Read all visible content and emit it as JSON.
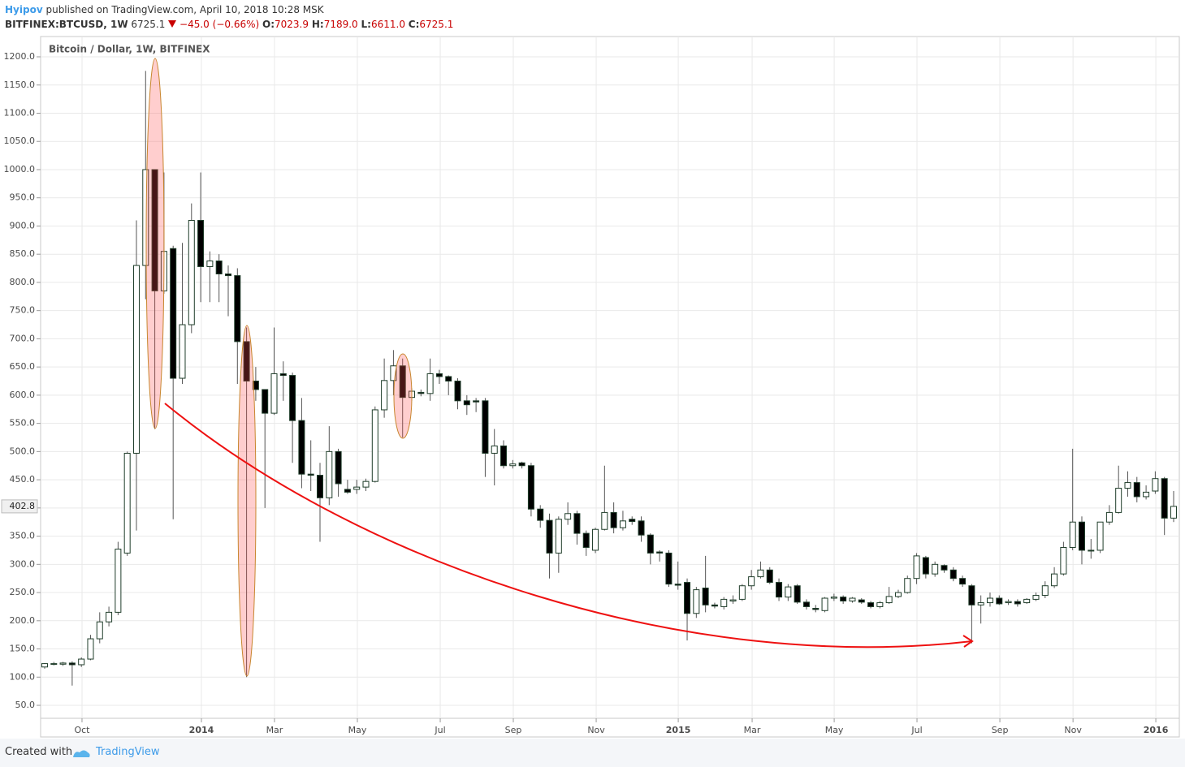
{
  "header": {
    "author": "Hyipov",
    "published": "published on TradingView.com, April 10, 2018 10:28 MSK",
    "symbol": "BITFINEX:BTCUSD, 1W",
    "last": "6725.1",
    "change": "−45.0 (−0.66%)",
    "ohlc": [
      {
        "label": "O:",
        "value": "7023.9"
      },
      {
        "label": "H:",
        "value": "7189.0"
      },
      {
        "label": "L:",
        "value": "6611.0"
      },
      {
        "label": "C:",
        "value": "6725.1"
      }
    ]
  },
  "footer": {
    "text": "Created with",
    "brand": "TradingView"
  },
  "chart_data": {
    "type": "candlestick",
    "title": "Bitcoin / Dollar, 1W, BITFINEX",
    "up_color": "#ffffff",
    "down_color": "#000000",
    "border_color": "#1f3d2a",
    "wick_color": "#555555",
    "grid": true,
    "ylim": [
      27,
      1236
    ],
    "yticks": [
      {
        "value": 50,
        "label": "50.0"
      },
      {
        "value": 100,
        "label": "100.0"
      },
      {
        "value": 150,
        "label": "150.0"
      },
      {
        "value": 200,
        "label": "200.0"
      },
      {
        "value": 250,
        "label": "250.0"
      },
      {
        "value": 300,
        "label": "300.0"
      },
      {
        "value": 350,
        "label": "350.0"
      },
      {
        "value": 400,
        "label": "400.0"
      },
      {
        "value": 450,
        "label": "450.0"
      },
      {
        "value": 500,
        "label": "500.0"
      },
      {
        "value": 550,
        "label": "550.0"
      },
      {
        "value": 600,
        "label": "600.0"
      },
      {
        "value": 650,
        "label": "650.0"
      },
      {
        "value": 700,
        "label": "700.0"
      },
      {
        "value": 750,
        "label": "750.0"
      },
      {
        "value": 800,
        "label": "800.0"
      },
      {
        "value": 850,
        "label": "850.0"
      },
      {
        "value": 900,
        "label": "900.0"
      },
      {
        "value": 950,
        "label": "950.0"
      },
      {
        "value": 1000,
        "label": "1000.0"
      },
      {
        "value": 1050,
        "label": "1050.0"
      },
      {
        "value": 1100,
        "label": "1100.0"
      },
      {
        "value": 1150,
        "label": "1150.0"
      },
      {
        "value": 1200,
        "label": "1200.0"
      }
    ],
    "xlim": [
      -0.44,
      123.62
    ],
    "xticks": [
      {
        "value": 4.07,
        "label": "Oct"
      },
      {
        "value": 17.08,
        "label": "2014"
      },
      {
        "value": 25.04,
        "label": "Mar"
      },
      {
        "value": 34.07,
        "label": "May"
      },
      {
        "value": 43.1,
        "label": "Jul"
      },
      {
        "value": 51.06,
        "label": "Sep"
      },
      {
        "value": 60.09,
        "label": "Nov"
      },
      {
        "value": 69.03,
        "label": "2015"
      },
      {
        "value": 77.08,
        "label": "Mar"
      },
      {
        "value": 86.02,
        "label": "May"
      },
      {
        "value": 95.04,
        "label": "Jul"
      },
      {
        "value": 104.07,
        "label": "Sep"
      },
      {
        "value": 112.04,
        "label": "Nov"
      },
      {
        "value": 121.06,
        "label": "2016"
      }
    ],
    "open": [
      118,
      124,
      123,
      125,
      122,
      132,
      168,
      198,
      215,
      320,
      497,
      830,
      1000,
      785,
      860,
      630,
      725,
      910,
      828,
      838,
      815,
      812,
      695,
      625,
      610,
      568,
      638,
      635,
      555,
      460,
      458,
      418,
      500,
      433,
      433,
      437,
      447,
      574,
      626,
      652,
      596,
      605,
      603,
      638,
      633,
      625,
      590,
      590,
      590,
      497,
      510,
      475,
      480,
      475,
      398,
      378,
      320,
      380,
      390,
      355,
      325,
      362,
      392,
      365,
      380,
      377,
      352,
      322,
      320,
      265,
      268,
      213,
      258,
      228,
      225,
      235,
      238,
      262,
      278,
      290,
      268,
      242,
      262,
      233,
      222,
      218,
      240,
      242,
      235,
      237,
      232,
      225,
      232,
      243,
      250,
      275,
      312,
      283,
      298,
      290,
      275,
      262,
      228,
      232,
      240,
      232,
      234,
      232,
      238,
      245,
      262,
      283,
      330,
      375,
      325,
      325,
      375,
      392,
      435,
      445,
      420,
      430,
      452,
      382
    ],
    "high": [
      125,
      127,
      127,
      128,
      135,
      175,
      215,
      225,
      340,
      500,
      910,
      1175,
      1000,
      995,
      865,
      870,
      940,
      995,
      855,
      850,
      830,
      825,
      720,
      650,
      610,
      720,
      660,
      640,
      595,
      520,
      480,
      545,
      505,
      450,
      450,
      452,
      580,
      665,
      680,
      665,
      612,
      610,
      665,
      645,
      635,
      630,
      600,
      595,
      595,
      540,
      520,
      485,
      482,
      480,
      405,
      390,
      385,
      410,
      395,
      360,
      365,
      475,
      410,
      395,
      385,
      385,
      355,
      325,
      325,
      305,
      275,
      260,
      315,
      232,
      242,
      245,
      265,
      290,
      305,
      295,
      275,
      265,
      265,
      238,
      228,
      242,
      248,
      245,
      242,
      240,
      235,
      235,
      260,
      255,
      280,
      320,
      315,
      305,
      300,
      295,
      280,
      265,
      245,
      250,
      245,
      238,
      238,
      240,
      250,
      270,
      295,
      340,
      505,
      385,
      345,
      375,
      405,
      475,
      465,
      455,
      440,
      465,
      455,
      430
    ],
    "low": [
      115,
      121,
      120,
      85,
      118,
      130,
      160,
      190,
      210,
      315,
      360,
      770,
      540,
      780,
      380,
      620,
      710,
      765,
      765,
      765,
      740,
      620,
      100,
      590,
      400,
      565,
      590,
      480,
      435,
      430,
      340,
      405,
      420,
      425,
      425,
      430,
      445,
      560,
      600,
      525,
      590,
      598,
      590,
      620,
      600,
      575,
      565,
      570,
      455,
      440,
      470,
      470,
      470,
      385,
      365,
      275,
      285,
      370,
      335,
      315,
      320,
      360,
      355,
      360,
      370,
      340,
      300,
      305,
      260,
      255,
      165,
      205,
      215,
      222,
      220,
      230,
      235,
      255,
      275,
      265,
      235,
      235,
      230,
      220,
      215,
      215,
      235,
      230,
      232,
      230,
      222,
      222,
      230,
      240,
      248,
      265,
      275,
      278,
      285,
      270,
      260,
      160,
      195,
      225,
      228,
      228,
      225,
      230,
      235,
      240,
      258,
      280,
      325,
      300,
      310,
      320,
      370,
      390,
      420,
      410,
      415,
      425,
      352,
      375
    ],
    "close": [
      124,
      123,
      125,
      122,
      132,
      168,
      198,
      215,
      327,
      497,
      830,
      1000,
      785,
      855,
      630,
      725,
      910,
      828,
      838,
      815,
      812,
      695,
      625,
      610,
      568,
      638,
      635,
      555,
      460,
      458,
      418,
      500,
      443,
      428,
      437,
      447,
      574,
      626,
      652,
      596,
      607,
      603,
      638,
      633,
      625,
      590,
      583,
      588,
      497,
      510,
      475,
      478,
      475,
      398,
      378,
      320,
      380,
      390,
      355,
      330,
      362,
      392,
      365,
      377,
      376,
      352,
      320,
      320,
      265,
      263,
      213,
      255,
      228,
      226,
      238,
      237,
      262,
      278,
      290,
      268,
      242,
      260,
      233,
      225,
      220,
      240,
      242,
      235,
      240,
      233,
      225,
      232,
      243,
      250,
      275,
      315,
      283,
      300,
      290,
      275,
      265,
      228,
      232,
      240,
      230,
      234,
      230,
      238,
      245,
      262,
      283,
      330,
      375,
      325,
      325,
      375,
      392,
      435,
      445,
      420,
      428,
      452,
      382,
      402.8
    ]
  }
}
